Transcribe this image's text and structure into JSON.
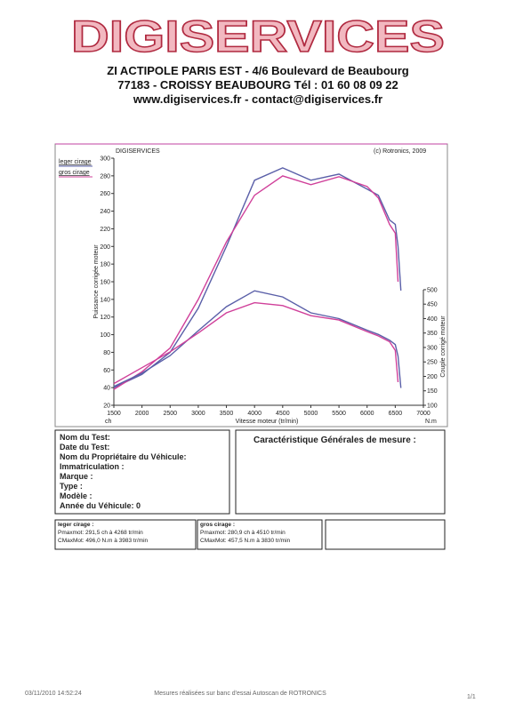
{
  "header": {
    "logo": "DIGISERVICES",
    "address_line1": "ZI ACTIPOLE PARIS EST - 4/6 Boulevard de Beaubourg",
    "address_line2": "77183 - CROISSY BEAUBOURG Tél : 01 60 08 09 22",
    "web_line": "www.digiservices.fr - contact@digiservices.fr"
  },
  "chart_data": {
    "type": "line",
    "title": "DIGISERVICES",
    "copyright": "(c) Rotronics, 2009",
    "x_label": "Vitesse moteur (tr/min)",
    "y_label": "Puissance corrigée moteur",
    "y2_label": "Couple corrigé moteur",
    "y_unit": "ch",
    "y2_unit": "N.m",
    "x": [
      1500,
      2000,
      2500,
      3000,
      3500,
      4000,
      4500,
      5000,
      5500,
      6000,
      6200,
      6400,
      6500,
      6550,
      6600
    ],
    "series": [
      {
        "name": "leger cirage",
        "color": "#5a5fa8",
        "values": [
          40,
          55,
          80,
          130,
          200,
          275,
          289,
          275,
          282,
          265,
          258,
          230,
          225,
          200,
          150
        ]
      },
      {
        "name": "gros cirage",
        "color": "#d0409a",
        "values": [
          38,
          58,
          85,
          140,
          205,
          258,
          280,
          270,
          279,
          268,
          255,
          225,
          215,
          160,
          null
        ]
      },
      {
        "color": "#5a5fa8",
        "axis": "y2",
        "values": [
          165,
          211,
          272,
          358,
          441,
          496,
          475,
          420,
          400,
          360,
          345,
          325,
          310,
          270,
          160
        ]
      },
      {
        "color": "#d0409a",
        "axis": "y2",
        "values": [
          175,
          230,
          285,
          350,
          420,
          455,
          445,
          410,
          395,
          355,
          340,
          320,
          290,
          180,
          null
        ]
      }
    ],
    "xlim": [
      1500,
      7000
    ],
    "xticks": [
      1500,
      2000,
      2500,
      3000,
      3500,
      4000,
      4500,
      5000,
      5500,
      6000,
      6500,
      7000
    ],
    "ylim": [
      20,
      300
    ],
    "yticks": [
      20,
      40,
      60,
      80,
      100,
      120,
      140,
      160,
      180,
      200,
      220,
      240,
      260,
      280,
      300
    ],
    "y2lim": [
      100,
      955
    ],
    "y2ticks": [
      100,
      150,
      200,
      250,
      300,
      350,
      400,
      450,
      500
    ]
  },
  "test_form": {
    "fields": [
      "Nom du Test:",
      "Date du Test:",
      "Nom du Propriétaire du Véhicule:",
      "Immatriculation  :",
      "Marque  :",
      "Type  :",
      "Modèle  :",
      "Année du Véhicule: 0"
    ]
  },
  "general": {
    "title": "Caractéristique Générales de mesure :"
  },
  "results": [
    {
      "title": "leger cirage :",
      "lines": [
        "Pmaxmot: 291,5 ch à 4268 tr/min",
        "CMaxMot: 496,0 N.m à 3983 tr/min"
      ]
    },
    {
      "title": "gros cirage :",
      "lines": [
        "Pmaxmot: 280,9 ch à 4510 tr/min",
        "CMaxMot: 457,5 N.m à 3830 tr/min"
      ]
    }
  ],
  "footer": {
    "timestamp": "03/11/2010 14:52:24",
    "note": "Mesures réalisées sur banc d'essai Autoscan de ROTRONICS",
    "page": "1/1"
  }
}
